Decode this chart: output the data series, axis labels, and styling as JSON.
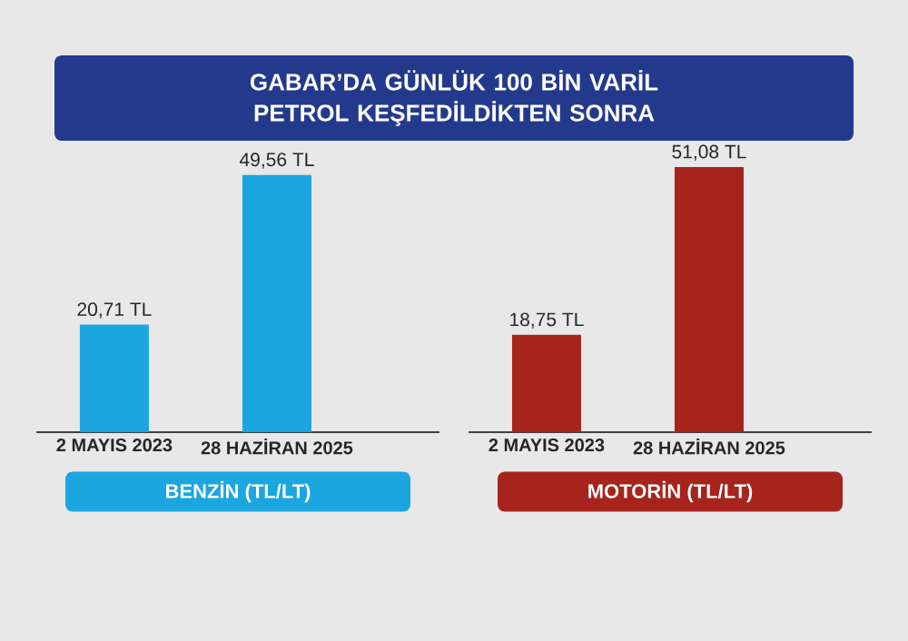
{
  "chart_data": [
    {
      "type": "bar",
      "title": "GABAR’DA GÜNLÜK 100 BİN VARİL PETROL KEŞFEDİLDİKTEN SONRA",
      "categories": [
        "2 MAYIS 2023",
        "28 HAZİRAN 2025"
      ],
      "values": [
        20.71,
        49.56
      ],
      "value_labels": [
        "20,71 TL",
        "49,56 TL"
      ],
      "color": "#1ba6e0",
      "xlabel": "BENZİN (TL/LT)"
    },
    {
      "type": "bar",
      "categories": [
        "2 MAYIS 2023",
        "28 HAZİRAN 2025"
      ],
      "values": [
        18.75,
        51.08
      ],
      "value_labels": [
        "18,75 TL",
        "51,08 TL"
      ],
      "color": "#a6241c",
      "xlabel": "MOTORİN (TL/LT)"
    }
  ]
}
